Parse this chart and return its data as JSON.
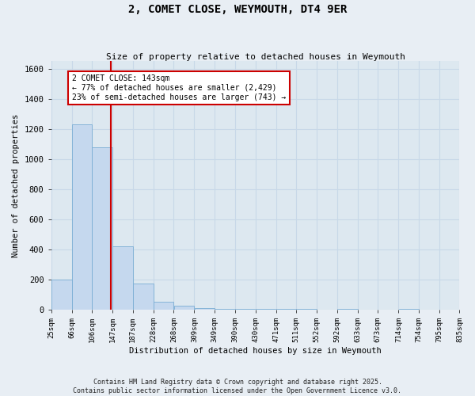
{
  "title": "2, COMET CLOSE, WEYMOUTH, DT4 9ER",
  "subtitle": "Size of property relative to detached houses in Weymouth",
  "xlabel": "Distribution of detached houses by size in Weymouth",
  "ylabel": "Number of detached properties",
  "bin_edges": [
    25,
    66,
    106,
    147,
    187,
    228,
    268,
    309,
    349,
    390,
    430,
    471,
    511,
    552,
    592,
    633,
    673,
    714,
    754,
    795,
    835
  ],
  "bar_heights": [
    200,
    1230,
    1080,
    420,
    170,
    50,
    25,
    10,
    5,
    3,
    2,
    1,
    1,
    0,
    1,
    0,
    0,
    1,
    0,
    0
  ],
  "bar_color": "#c5d8ee",
  "bar_edge_color": "#7aadd4",
  "red_line_x": 143,
  "annotation_text": "2 COMET CLOSE: 143sqm\n← 77% of detached houses are smaller (2,429)\n23% of semi-detached houses are larger (743) →",
  "annotation_box_color": "#ffffff",
  "annotation_box_edge_color": "#cc0000",
  "ylim": [
    0,
    1650
  ],
  "xlim": [
    25,
    835
  ],
  "grid_color": "#c8d8e8",
  "background_color": "#dde8f0",
  "fig_background_color": "#e8eef4",
  "footnote1": "Contains HM Land Registry data © Crown copyright and database right 2025.",
  "footnote2": "Contains public sector information licensed under the Open Government Licence v3.0."
}
